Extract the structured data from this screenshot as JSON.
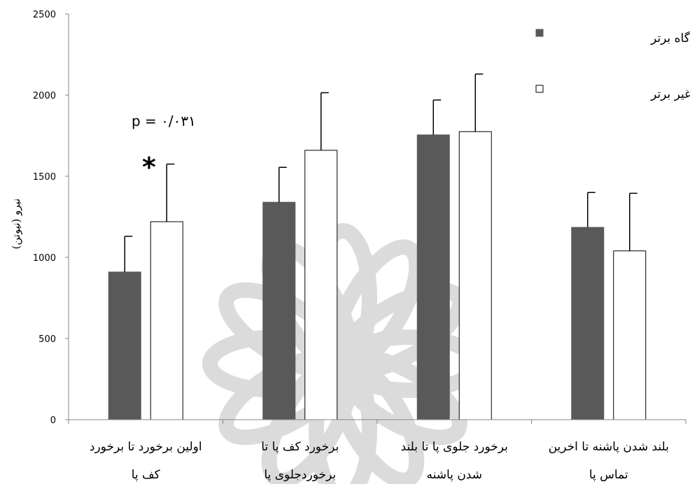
{
  "chart_data": {
    "type": "bar",
    "ylabel": "نیرو (نیوتن)",
    "ylim": [
      0,
      2500
    ],
    "yticks": [
      "0",
      "500",
      "1000",
      "1500",
      "2000",
      "2500"
    ],
    "grid": false,
    "legend_position": "top-right",
    "categories": [
      {
        "line1": "اولین برخورد تا برخورد",
        "line2": "کف پا"
      },
      {
        "line1": "برخورد کف پا تا",
        "line2": "برخوردجلوی پا"
      },
      {
        "line1": "برخورد جلوی پا تا بلند",
        "line2": "شدن پاشنه"
      },
      {
        "line1": "بلند شدن پاشنه تا اخرین",
        "line2": "تماس پا"
      }
    ],
    "series": [
      {
        "name": "پای تکیه گاه برتر",
        "color": "#595959",
        "values": [
          910,
          1340,
          1755,
          1185
        ],
        "errors": [
          220,
          215,
          215,
          215
        ]
      },
      {
        "name": "پای تکیه گاه غیر برتر",
        "color": "#ffffff",
        "values": [
          1220,
          1660,
          1775,
          1040
        ],
        "errors": [
          355,
          355,
          355,
          355
        ]
      }
    ],
    "annotations": [
      {
        "text": "p = ۰/۰۳۱",
        "category_index": 0
      },
      {
        "text": "*",
        "category_index": 0
      }
    ]
  }
}
